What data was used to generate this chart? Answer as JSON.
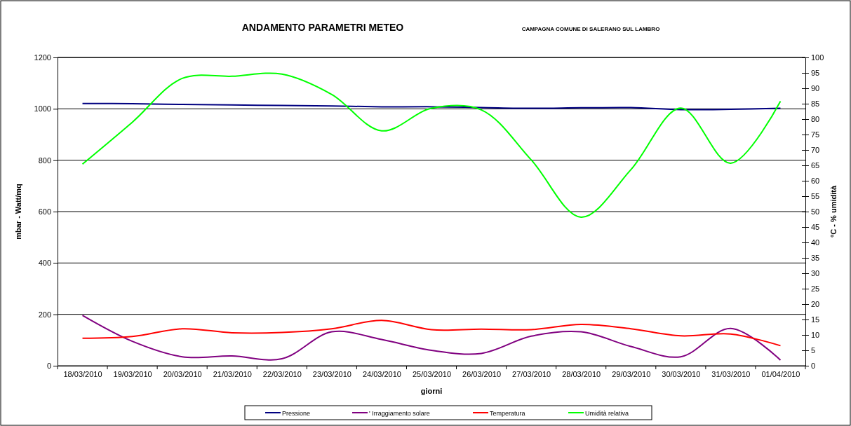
{
  "chart_data": {
    "type": "line",
    "title": "ANDAMENTO PARAMETRI  METEO",
    "subtitle": "CAMPAGNA COMUNE DI SALERANO SUL LAMBRO",
    "xlabel": "giorni",
    "ylabel": "mbar - Watt/mq",
    "y2label": "°C  -   % umidità",
    "categories": [
      "18/03/2010",
      "19/03/2010",
      "20/03/2010",
      "21/03/2010",
      "22/03/2010",
      "23/03/2010",
      "24/03/2010",
      "25/03/2010",
      "26/03/2010",
      "27/03/2010",
      "28/03/2010",
      "29/03/2010",
      "30/03/2010",
      "31/03/2010",
      "01/04/2010"
    ],
    "series": [
      {
        "name": "Pressione",
        "color": "#000080",
        "values": [
          1021,
          1020,
          1017,
          1015,
          1013,
          1011,
          1008,
          1008,
          1005,
          1002,
          1004,
          1005,
          997,
          998,
          1002
        ]
      },
      {
        "name": "' Irraggiamento solare",
        "color": "#800080",
        "values": [
          196,
          95,
          35,
          38,
          27,
          132,
          102,
          60,
          48,
          115,
          132,
          75,
          35,
          145,
          22
        ]
      },
      {
        "name": "Temperatura",
        "color": "#ff0000",
        "values": [
          8.9,
          9.5,
          12,
          10.7,
          10.8,
          12,
          14.7,
          11.7,
          11.9,
          11.7,
          13.4,
          12,
          9.7,
          10.3,
          6.5
        ],
        "axis": "y2"
      },
      {
        "name": "Umidità relativa",
        "color": "#00ff00",
        "values": [
          65.4,
          79,
          93.2,
          93.9,
          94.6,
          88,
          76.2,
          83.5,
          83,
          66.8,
          48.2,
          63.6,
          83.6,
          65.7,
          85.8
        ],
        "axis": "y2"
      }
    ],
    "ylim": [
      0,
      1200
    ],
    "yticks": [
      0,
      200,
      400,
      600,
      800,
      1000,
      1200
    ],
    "y2lim": [
      0,
      100
    ],
    "y2ticks": [
      0,
      5,
      10,
      15,
      20,
      25,
      30,
      35,
      40,
      45,
      50,
      55,
      60,
      65,
      70,
      75,
      80,
      85,
      90,
      95,
      100
    ],
    "grid": "y",
    "legend": "bottom",
    "marker": "none",
    "line_style": "solid"
  }
}
